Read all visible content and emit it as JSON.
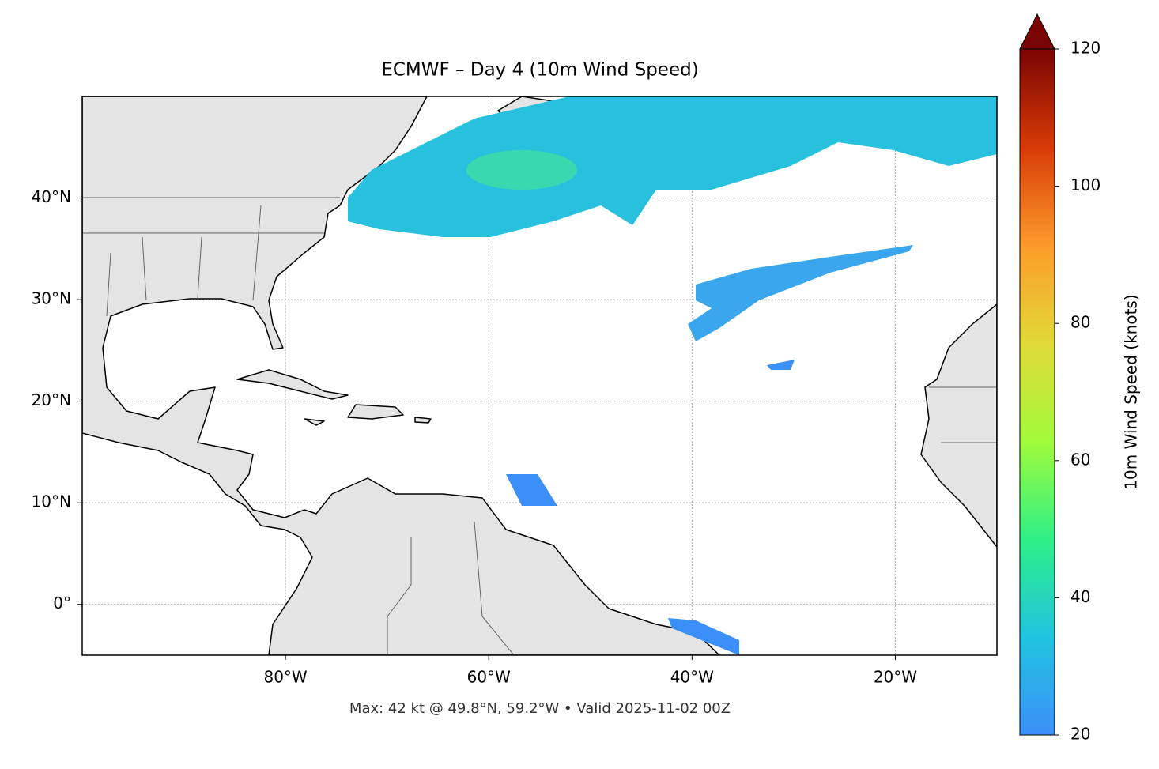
{
  "chart_data": {
    "type": "map",
    "title": "ECMWF – Day 4 (10m Wind Speed)",
    "annotation": "Max: 42 kt @ 49.8°N, 59.2°W • Valid 2025-11-02 00Z",
    "xlim": [
      -100,
      -10
    ],
    "ylim": [
      -5,
      50
    ],
    "xticks": [
      {
        "value": -80,
        "label": "80°W"
      },
      {
        "value": -60,
        "label": "60°W"
      },
      {
        "value": -40,
        "label": "40°W"
      },
      {
        "value": -20,
        "label": "20°W"
      }
    ],
    "yticks": [
      {
        "value": 0,
        "label": "0°"
      },
      {
        "value": 10,
        "label": "10°N"
      },
      {
        "value": 20,
        "label": "20°N"
      },
      {
        "value": 30,
        "label": "30°N"
      },
      {
        "value": 40,
        "label": "40°N"
      }
    ],
    "grid": true,
    "colorbar": {
      "label": "10m Wind Speed (knots)",
      "lim": [
        20,
        120
      ],
      "ticks": [
        20,
        40,
        60,
        80,
        100,
        120
      ],
      "colors": [
        "#3b8ff8",
        "#21c4e0",
        "#2ef087",
        "#a2fb3b",
        "#e2d936",
        "#fd9a2b",
        "#d73a07",
        "#7a0403"
      ]
    }
  }
}
